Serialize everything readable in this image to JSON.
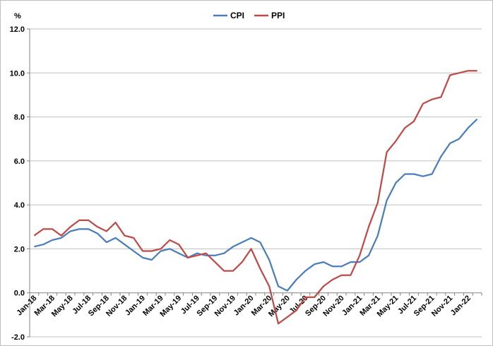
{
  "chart_data": {
    "type": "line",
    "ylabel": "%",
    "ylim": [
      -2,
      12
    ],
    "yticks": [
      "12.0",
      "10.0",
      "8.0",
      "6.0",
      "4.0",
      "2.0",
      "0.0",
      "-2.0"
    ],
    "grid": "horizontal",
    "legend_position": "top",
    "x": [
      "Jan-18",
      "Feb-18",
      "Mar-18",
      "Apr-18",
      "May-18",
      "Jun-18",
      "Jul-18",
      "Aug-18",
      "Sep-18",
      "Oct-18",
      "Nov-18",
      "Dec-18",
      "Jan-19",
      "Feb-19",
      "Mar-19",
      "Apr-19",
      "May-19",
      "Jun-19",
      "Jul-19",
      "Aug-19",
      "Sep-19",
      "Oct-19",
      "Nov-19",
      "Dec-19",
      "Jan-20",
      "Feb-20",
      "Mar-20",
      "Apr-20",
      "May-20",
      "Jun-20",
      "Jul-20",
      "Aug-20",
      "Sep-20",
      "Oct-20",
      "Nov-20",
      "Dec-20",
      "Jan-21",
      "Feb-21",
      "Mar-21",
      "Apr-21",
      "May-21",
      "Jun-21",
      "Jul-21",
      "Aug-21",
      "Sep-21",
      "Oct-21",
      "Nov-21",
      "Dec-21",
      "Jan-22",
      "Feb-22"
    ],
    "xtick_labels": [
      "Jan-18",
      "Mar-18",
      "May-18",
      "Jul-18",
      "Sep-18",
      "Nov-18",
      "Jan-19",
      "Mar-19",
      "May-19",
      "Jul-19",
      "Sep-19",
      "Nov-19",
      "Jan-20",
      "Mar-20",
      "May-20",
      "Jul-20",
      "Sep-20",
      "Nov-20",
      "Jan-21",
      "Mar-21",
      "May-21",
      "Jul-21",
      "Sep-21",
      "Nov-21",
      "Jan-22"
    ],
    "series": [
      {
        "name": "CPI",
        "color": "#4a7ebb",
        "values": [
          2.1,
          2.2,
          2.4,
          2.5,
          2.8,
          2.9,
          2.9,
          2.7,
          2.3,
          2.5,
          2.2,
          1.9,
          1.6,
          1.5,
          1.9,
          2.0,
          1.8,
          1.6,
          1.8,
          1.7,
          1.7,
          1.8,
          2.1,
          2.3,
          2.5,
          2.3,
          1.5,
          0.3,
          0.1,
          0.6,
          1.0,
          1.3,
          1.4,
          1.2,
          1.2,
          1.4,
          1.4,
          1.7,
          2.6,
          4.2,
          5.0,
          5.4,
          5.4,
          5.3,
          5.4,
          6.2,
          6.8,
          7.0,
          7.5,
          7.9
        ]
      },
      {
        "name": "PPI",
        "color": "#be4b48",
        "values": [
          2.6,
          2.9,
          2.9,
          2.6,
          3.0,
          3.3,
          3.3,
          3.0,
          2.8,
          3.2,
          2.6,
          2.5,
          1.9,
          1.9,
          2.0,
          2.4,
          2.2,
          1.6,
          1.7,
          1.8,
          1.4,
          1.0,
          1.0,
          1.4,
          2.0,
          1.1,
          0.3,
          -1.4,
          -1.1,
          -0.8,
          -0.2,
          -0.2,
          0.3,
          0.6,
          0.8,
          0.8,
          1.7,
          3.0,
          4.1,
          6.4,
          6.9,
          7.5,
          7.8,
          8.6,
          8.8,
          8.9,
          9.9,
          10.0,
          10.1,
          10.1
        ]
      }
    ]
  }
}
